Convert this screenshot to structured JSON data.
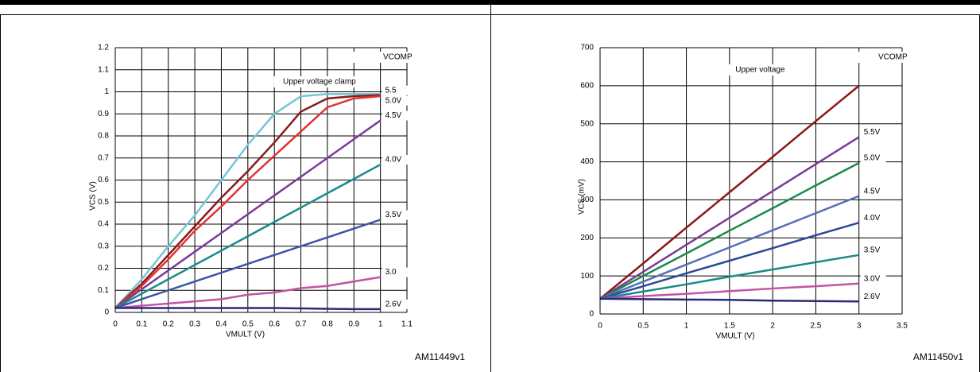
{
  "chart_data": [
    {
      "type": "line",
      "annotation": "VCOMP",
      "figure_id": "AM11449v1",
      "x_label": "VMULT (V)",
      "y_label": "VCS (V)",
      "x": [
        0,
        0.1,
        0.2,
        0.3,
        0.4,
        0.5,
        0.6,
        0.7,
        0.8,
        0.9,
        1
      ],
      "xlim": [
        0,
        1.1
      ],
      "xticks": [
        0,
        0.1,
        0.2,
        0.3,
        0.4,
        0.5,
        0.6,
        0.7,
        0.8,
        0.9,
        1,
        1.1
      ],
      "ylim": [
        0,
        1.2
      ],
      "yticks": [
        0,
        0.1,
        0.2,
        0.3,
        0.4,
        0.5,
        0.6,
        0.7,
        0.8,
        0.9,
        1,
        1.1,
        1.2
      ],
      "grid": true,
      "series": [
        {
          "name": "Upper voltage clamp",
          "color": "#74c6d6",
          "values": [
            0.02,
            0.15,
            0.3,
            0.44,
            0.6,
            0.76,
            0.9,
            0.98,
            0.99,
            0.99,
            0.99
          ]
        },
        {
          "name": "5.5",
          "color": "#8b1a1a",
          "values": [
            0.02,
            0.13,
            0.26,
            0.39,
            0.52,
            0.64,
            0.77,
            0.91,
            0.97,
            0.98,
            0.985
          ]
        },
        {
          "name": "5.0V",
          "color": "#e23232",
          "values": [
            0.02,
            0.12,
            0.24,
            0.37,
            0.48,
            0.6,
            0.71,
            0.82,
            0.93,
            0.97,
            0.98
          ]
        },
        {
          "name": "4.5V",
          "color": "#7b3a98",
          "values": [
            0.02,
            0.105,
            0.19,
            0.275,
            0.36,
            0.445,
            0.53,
            0.615,
            0.7,
            0.785,
            0.87
          ]
        },
        {
          "name": "4.0V",
          "color": "#1a8a8a",
          "values": [
            0.02,
            0.085,
            0.15,
            0.215,
            0.28,
            0.345,
            0.41,
            0.475,
            0.54,
            0.605,
            0.67
          ]
        },
        {
          "name": "3.5V",
          "color": "#3b56a2",
          "values": [
            0.02,
            0.06,
            0.1,
            0.14,
            0.18,
            0.22,
            0.26,
            0.3,
            0.34,
            0.38,
            0.42
          ]
        },
        {
          "name": "3.0",
          "color": "#c552a4",
          "values": [
            0.02,
            0.03,
            0.04,
            0.05,
            0.06,
            0.08,
            0.09,
            0.11,
            0.12,
            0.14,
            0.16
          ]
        },
        {
          "name": "2.6V",
          "color": "#2a2a78",
          "values": [
            0.02,
            0.02,
            0.02,
            0.02,
            0.02,
            0.02,
            0.02,
            0.018,
            0.016,
            0.015,
            0.015
          ]
        }
      ]
    },
    {
      "type": "line",
      "annotation": "VCOMP",
      "figure_id": "AM11450v1",
      "x_label": "VMULT (V)",
      "y_label": "VCS (mV)",
      "x": [
        0,
        0.5,
        1,
        1.5,
        2,
        2.5,
        3
      ],
      "xlim": [
        0,
        3.5
      ],
      "xticks": [
        0,
        0.5,
        1,
        1.5,
        2,
        2.5,
        3,
        3.5
      ],
      "ylim": [
        0,
        700
      ],
      "yticks": [
        0,
        100,
        200,
        300,
        400,
        500,
        600,
        700
      ],
      "grid": true,
      "series": [
        {
          "name": "Upper  voltage",
          "color": "#8b1a1a",
          "values": [
            40,
            133,
            227,
            320,
            413,
            507,
            600
          ]
        },
        {
          "name": "5.5V",
          "color": "#7b3a98",
          "values": [
            40,
            111,
            182,
            253,
            323,
            394,
            465
          ]
        },
        {
          "name": "5.0V",
          "color": "#1a8a4a",
          "values": [
            40,
            100,
            159,
            219,
            278,
            338,
            397
          ]
        },
        {
          "name": "4.5V",
          "color": "#5570b8",
          "values": [
            40,
            85,
            130,
            175,
            220,
            265,
            310
          ]
        },
        {
          "name": "4.0V",
          "color": "#2c4a98",
          "values": [
            40,
            73,
            107,
            140,
            173,
            207,
            240
          ]
        },
        {
          "name": "3.5V",
          "color": "#1a8a8a",
          "values": [
            40,
            59,
            78,
            98,
            117,
            136,
            155
          ]
        },
        {
          "name": "3.0V",
          "color": "#c552a4",
          "values": [
            40,
            47,
            53,
            60,
            67,
            73,
            80
          ]
        },
        {
          "name": "2.6V",
          "color": "#2a2a78",
          "values": [
            40,
            39,
            38,
            37,
            35,
            34,
            33
          ]
        }
      ]
    }
  ]
}
